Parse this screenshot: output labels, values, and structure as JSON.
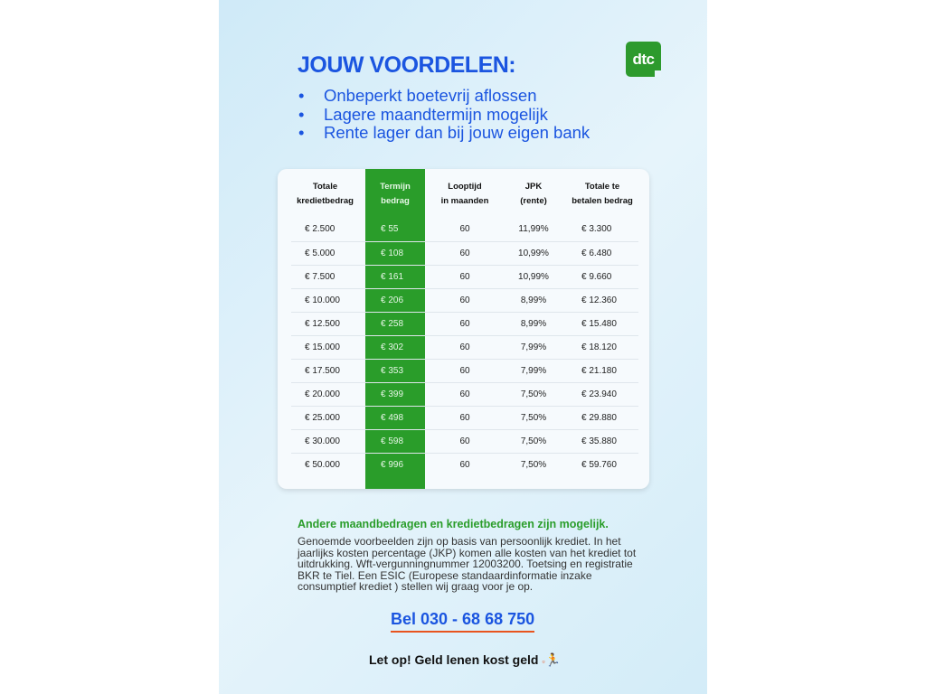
{
  "title": "JOUW VOORDELEN:",
  "bullets": [
    "Onbeperkt boetevrij aflossen",
    "Lagere maandtermijn mogelijk",
    "Rente lager dan bij jouw eigen bank"
  ],
  "logo": "dtc",
  "table": {
    "headers": [
      [
        "Totale",
        "kredietbedrag"
      ],
      [
        "Termijn",
        "bedrag"
      ],
      [
        "Looptijd",
        "in maanden"
      ],
      [
        "JPK",
        "(rente)"
      ],
      [
        "Totale te",
        "betalen bedrag"
      ]
    ],
    "rows": [
      [
        "€ 2.500",
        "€ 55",
        "60",
        "11,99%",
        "€ 3.300"
      ],
      [
        "€ 5.000",
        "€ 108",
        "60",
        "10,99%",
        "€ 6.480"
      ],
      [
        "€ 7.500",
        "€ 161",
        "60",
        "10,99%",
        "€ 9.660"
      ],
      [
        "€ 10.000",
        "€ 206",
        "60",
        "8,99%",
        "€ 12.360"
      ],
      [
        "€ 12.500",
        "€ 258",
        "60",
        "8,99%",
        "€ 15.480"
      ],
      [
        "€ 15.000",
        "€ 302",
        "60",
        "7,99%",
        "€ 18.120"
      ],
      [
        "€ 17.500",
        "€ 353",
        "60",
        "7,99%",
        "€ 21.180"
      ],
      [
        "€ 20.000",
        "€ 399",
        "60",
        "7,50%",
        "€ 23.940"
      ],
      [
        "€ 25.000",
        "€ 498",
        "60",
        "7,50%",
        "€ 29.880"
      ],
      [
        "€ 30.000",
        "€ 598",
        "60",
        "7,50%",
        "€ 35.880"
      ],
      [
        "€ 50.000",
        "€ 996",
        "60",
        "7,50%",
        "€ 59.760"
      ]
    ]
  },
  "note": "Andere maandbedragen en kredietbedragen zijn mogelijk.",
  "disclaimer": "Genoemde voorbeelden zijn op basis van persoonlijk krediet. In het jaarlijks kosten percentage (JKP) komen alle kosten van het krediet tot uitdrukking. Wft-vergunningnummer 12003200. Toetsing en registratie BKR te Tiel. Een ESIC (Europese standaardinformatie inzake consumptief krediet ) stellen wij graag voor je op.",
  "phone": "Bel 030 - 68 68 750",
  "warning": "Let op! Geld lenen kost geld",
  "colors": {
    "blue": "#1b55e0",
    "green": "#2a9d2a",
    "orange": "#e8541e"
  }
}
